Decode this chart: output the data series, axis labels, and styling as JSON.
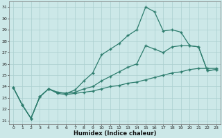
{
  "xlabel": "Humidex (Indice chaleur)",
  "background_color": "#cce8e8",
  "line_color": "#2e7d6e",
  "grid_color": "#aacfcf",
  "xlim": [
    -0.5,
    23.5
  ],
  "ylim": [
    20.7,
    31.5
  ],
  "x_ticks": [
    0,
    1,
    2,
    3,
    4,
    5,
    6,
    7,
    8,
    9,
    10,
    11,
    12,
    13,
    14,
    15,
    16,
    17,
    18,
    19,
    20,
    21,
    22,
    23
  ],
  "y_ticks": [
    21,
    22,
    23,
    24,
    25,
    26,
    27,
    28,
    29,
    30,
    31
  ],
  "line1_x": [
    0,
    1,
    2,
    3,
    4,
    5,
    6,
    7,
    8,
    9,
    10,
    11,
    12,
    13,
    14,
    15,
    16,
    17,
    18,
    19,
    20,
    21,
    22,
    23
  ],
  "line1_y": [
    23.9,
    22.4,
    21.2,
    23.1,
    23.8,
    23.5,
    23.4,
    23.7,
    24.5,
    25.2,
    26.8,
    27.3,
    27.8,
    28.5,
    29.0,
    31.0,
    30.6,
    28.9,
    29.0,
    28.8,
    27.6,
    27.5,
    25.4,
    25.5
  ],
  "line2_x": [
    0,
    1,
    2,
    3,
    4,
    5,
    6,
    7,
    8,
    9,
    10,
    11,
    12,
    13,
    14,
    15,
    16,
    17,
    18,
    19,
    20,
    21,
    22,
    23
  ],
  "line2_y": [
    23.9,
    22.4,
    21.2,
    23.1,
    23.8,
    23.5,
    23.4,
    23.5,
    23.8,
    24.0,
    24.5,
    24.9,
    25.3,
    25.7,
    26.0,
    27.6,
    27.3,
    27.0,
    27.5,
    27.6,
    27.6,
    27.5,
    25.4,
    25.5
  ],
  "line3_x": [
    0,
    1,
    2,
    3,
    4,
    5,
    6,
    7,
    8,
    9,
    10,
    11,
    12,
    13,
    14,
    15,
    16,
    17,
    18,
    19,
    20,
    21,
    22,
    23
  ],
  "line3_y": [
    23.9,
    22.4,
    21.2,
    23.1,
    23.8,
    23.4,
    23.3,
    23.4,
    23.5,
    23.6,
    23.8,
    24.0,
    24.1,
    24.3,
    24.4,
    24.6,
    24.8,
    25.0,
    25.2,
    25.3,
    25.5,
    25.6,
    25.6,
    25.6
  ]
}
